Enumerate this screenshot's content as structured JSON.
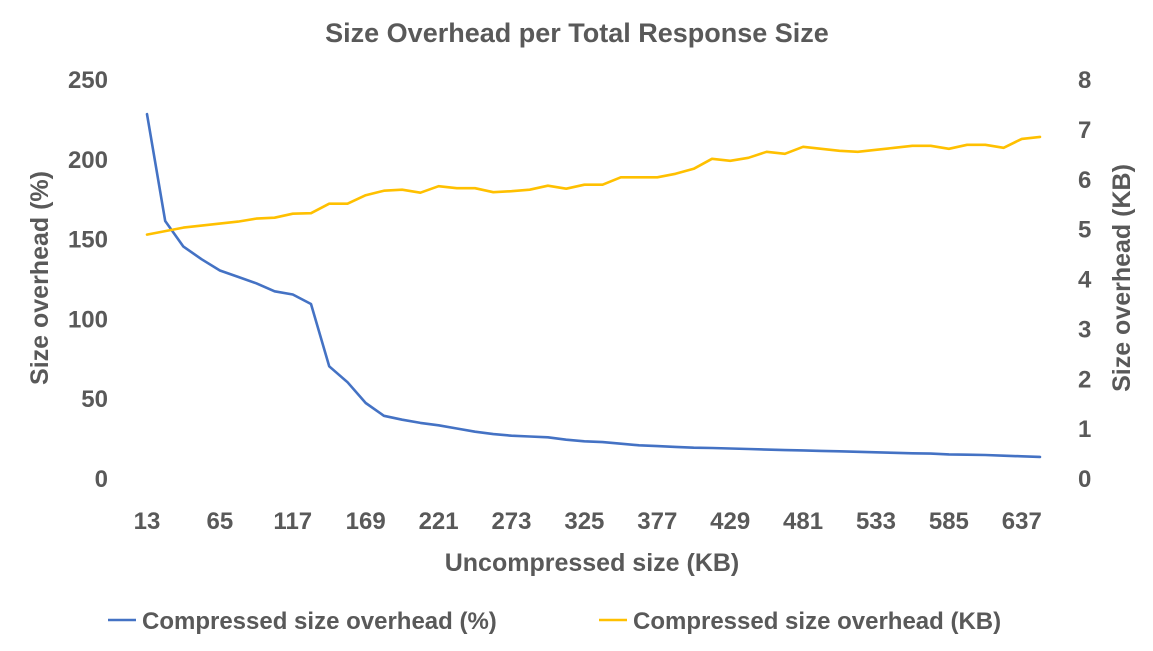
{
  "chart_data": {
    "type": "line",
    "title": "Size Overhead per Total Response Size",
    "xlabel": "Uncompressed size (KB)",
    "ylabel": "Size overhead (%)",
    "y2label": "Size overhead (KB)",
    "x_tick_labels": [
      "13",
      "65",
      "117",
      "169",
      "221",
      "273",
      "325",
      "377",
      "429",
      "481",
      "533",
      "585",
      "637"
    ],
    "x": [
      13,
      26,
      39,
      52,
      65,
      78,
      91,
      104,
      117,
      130,
      143,
      156,
      169,
      182,
      195,
      208,
      221,
      234,
      247,
      260,
      273,
      286,
      299,
      312,
      325,
      338,
      351,
      364,
      377,
      390,
      403,
      416,
      429,
      442,
      455,
      468,
      481,
      494,
      507,
      520,
      533,
      546,
      559,
      572,
      585,
      598,
      611,
      624,
      637,
      650
    ],
    "ylim": [
      0,
      250
    ],
    "y_ticks": [
      0,
      50,
      100,
      150,
      200,
      250
    ],
    "y2lim": [
      0,
      8
    ],
    "y2_ticks": [
      0,
      1,
      2,
      3,
      4,
      5,
      6,
      7,
      8
    ],
    "grid": false,
    "legend_position": "bottom",
    "series": [
      {
        "name": "Compressed size overhead (%)",
        "axis": "left",
        "color": "#4472C4",
        "values": [
          228,
          161,
          145,
          137,
          130,
          126,
          122,
          117,
          115,
          109,
          70,
          60,
          47,
          39,
          36.5,
          34.5,
          33,
          31,
          29,
          27.5,
          26.5,
          26,
          25.5,
          24,
          23,
          22.5,
          21.5,
          20.5,
          20,
          19.5,
          19,
          18.8,
          18.5,
          18.2,
          17.8,
          17.5,
          17.3,
          17,
          16.7,
          16.4,
          16.1,
          15.8,
          15.5,
          15.3,
          14.8,
          14.6,
          14.4,
          14,
          13.6,
          13.2
        ]
      },
      {
        "name": "Compressed size overhead (KB)",
        "axis": "right",
        "color": "#FFC000",
        "values": [
          4.88,
          4.95,
          5.02,
          5.06,
          5.1,
          5.14,
          5.2,
          5.22,
          5.3,
          5.31,
          5.5,
          5.5,
          5.67,
          5.76,
          5.78,
          5.72,
          5.85,
          5.81,
          5.81,
          5.73,
          5.75,
          5.78,
          5.86,
          5.8,
          5.88,
          5.88,
          6.03,
          6.03,
          6.03,
          6.1,
          6.2,
          6.4,
          6.36,
          6.42,
          6.54,
          6.5,
          6.64,
          6.6,
          6.56,
          6.54,
          6.58,
          6.62,
          6.66,
          6.66,
          6.6,
          6.68,
          6.68,
          6.62,
          6.8,
          6.84
        ]
      }
    ]
  }
}
